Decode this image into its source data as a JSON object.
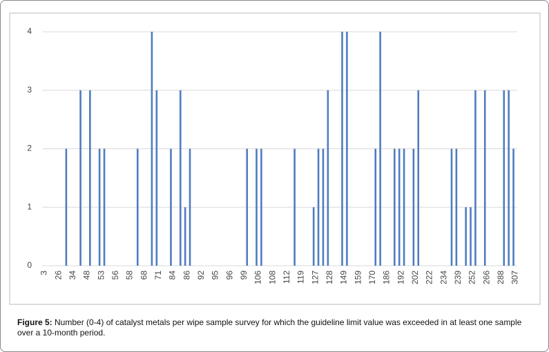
{
  "chart_data": {
    "type": "bar",
    "categories": [
      "3",
      null,
      null,
      "26",
      null,
      null,
      "34",
      null,
      null,
      "48",
      null,
      null,
      "53",
      null,
      null,
      "56",
      null,
      null,
      "58",
      null,
      null,
      "68",
      null,
      null,
      "71",
      null,
      null,
      "84",
      null,
      null,
      "86",
      null,
      null,
      "92",
      null,
      null,
      "95",
      null,
      null,
      "96",
      null,
      null,
      "99",
      null,
      null,
      "106",
      null,
      null,
      "108",
      null,
      null,
      "112",
      null,
      null,
      "119",
      null,
      null,
      "127",
      null,
      null,
      "128",
      null,
      null,
      "149",
      null,
      null,
      "159",
      null,
      null,
      "170",
      null,
      null,
      "186",
      null,
      null,
      "192",
      null,
      null,
      "202",
      null,
      null,
      "222",
      null,
      null,
      "234",
      null,
      null,
      "239",
      null,
      null,
      "252",
      null,
      null,
      "266",
      null,
      null,
      "288",
      null,
      null,
      "307"
    ],
    "values": [
      0,
      0,
      0,
      0,
      0,
      2,
      0,
      0,
      3,
      0,
      3,
      0,
      2,
      2,
      0,
      0,
      0,
      0,
      0,
      0,
      2,
      0,
      0,
      4,
      3,
      0,
      0,
      2,
      0,
      3,
      1,
      2,
      0,
      0,
      0,
      0,
      0,
      0,
      0,
      0,
      0,
      0,
      0,
      2,
      0,
      2,
      2,
      0,
      0,
      0,
      0,
      0,
      0,
      2,
      0,
      0,
      0,
      1,
      2,
      2,
      3,
      0,
      0,
      4,
      4,
      0,
      0,
      0,
      0,
      0,
      2,
      4,
      0,
      0,
      2,
      2,
      2,
      0,
      2,
      3,
      0,
      0,
      0,
      0,
      0,
      0,
      2,
      2,
      0,
      1,
      1,
      3,
      0,
      3,
      0,
      0,
      0,
      3,
      3,
      2
    ],
    "color": "#4f7cc0",
    "ylim": [
      0,
      4
    ],
    "yticks": [
      0,
      1,
      2,
      3,
      4
    ],
    "grid": true
  },
  "figure": {
    "label": "Figure 5:",
    "text": " Number (0-4) of catalyst metals per wipe sample survey for which the guideline limit value was exceeded in at least one sample over a 10-month period."
  }
}
